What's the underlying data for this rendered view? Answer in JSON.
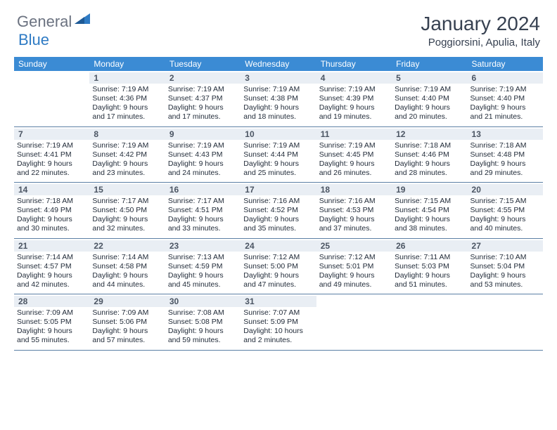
{
  "logo": {
    "general": "General",
    "blue": "Blue"
  },
  "title": "January 2024",
  "location": "Poggiorsini, Apulia, Italy",
  "colors": {
    "header_bar": "#3b8bd4",
    "daynum_bg": "#e9eef4",
    "row_border": "#5b7fa5",
    "logo_gray": "#6b7280",
    "logo_blue": "#2f7bc4"
  },
  "weekdays": [
    "Sunday",
    "Monday",
    "Tuesday",
    "Wednesday",
    "Thursday",
    "Friday",
    "Saturday"
  ],
  "weeks": [
    [
      {
        "num": "",
        "lines": []
      },
      {
        "num": "1",
        "lines": [
          "Sunrise: 7:19 AM",
          "Sunset: 4:36 PM",
          "Daylight: 9 hours",
          "and 17 minutes."
        ]
      },
      {
        "num": "2",
        "lines": [
          "Sunrise: 7:19 AM",
          "Sunset: 4:37 PM",
          "Daylight: 9 hours",
          "and 17 minutes."
        ]
      },
      {
        "num": "3",
        "lines": [
          "Sunrise: 7:19 AM",
          "Sunset: 4:38 PM",
          "Daylight: 9 hours",
          "and 18 minutes."
        ]
      },
      {
        "num": "4",
        "lines": [
          "Sunrise: 7:19 AM",
          "Sunset: 4:39 PM",
          "Daylight: 9 hours",
          "and 19 minutes."
        ]
      },
      {
        "num": "5",
        "lines": [
          "Sunrise: 7:19 AM",
          "Sunset: 4:40 PM",
          "Daylight: 9 hours",
          "and 20 minutes."
        ]
      },
      {
        "num": "6",
        "lines": [
          "Sunrise: 7:19 AM",
          "Sunset: 4:40 PM",
          "Daylight: 9 hours",
          "and 21 minutes."
        ]
      }
    ],
    [
      {
        "num": "7",
        "lines": [
          "Sunrise: 7:19 AM",
          "Sunset: 4:41 PM",
          "Daylight: 9 hours",
          "and 22 minutes."
        ]
      },
      {
        "num": "8",
        "lines": [
          "Sunrise: 7:19 AM",
          "Sunset: 4:42 PM",
          "Daylight: 9 hours",
          "and 23 minutes."
        ]
      },
      {
        "num": "9",
        "lines": [
          "Sunrise: 7:19 AM",
          "Sunset: 4:43 PM",
          "Daylight: 9 hours",
          "and 24 minutes."
        ]
      },
      {
        "num": "10",
        "lines": [
          "Sunrise: 7:19 AM",
          "Sunset: 4:44 PM",
          "Daylight: 9 hours",
          "and 25 minutes."
        ]
      },
      {
        "num": "11",
        "lines": [
          "Sunrise: 7:19 AM",
          "Sunset: 4:45 PM",
          "Daylight: 9 hours",
          "and 26 minutes."
        ]
      },
      {
        "num": "12",
        "lines": [
          "Sunrise: 7:18 AM",
          "Sunset: 4:46 PM",
          "Daylight: 9 hours",
          "and 28 minutes."
        ]
      },
      {
        "num": "13",
        "lines": [
          "Sunrise: 7:18 AM",
          "Sunset: 4:48 PM",
          "Daylight: 9 hours",
          "and 29 minutes."
        ]
      }
    ],
    [
      {
        "num": "14",
        "lines": [
          "Sunrise: 7:18 AM",
          "Sunset: 4:49 PM",
          "Daylight: 9 hours",
          "and 30 minutes."
        ]
      },
      {
        "num": "15",
        "lines": [
          "Sunrise: 7:17 AM",
          "Sunset: 4:50 PM",
          "Daylight: 9 hours",
          "and 32 minutes."
        ]
      },
      {
        "num": "16",
        "lines": [
          "Sunrise: 7:17 AM",
          "Sunset: 4:51 PM",
          "Daylight: 9 hours",
          "and 33 minutes."
        ]
      },
      {
        "num": "17",
        "lines": [
          "Sunrise: 7:16 AM",
          "Sunset: 4:52 PM",
          "Daylight: 9 hours",
          "and 35 minutes."
        ]
      },
      {
        "num": "18",
        "lines": [
          "Sunrise: 7:16 AM",
          "Sunset: 4:53 PM",
          "Daylight: 9 hours",
          "and 37 minutes."
        ]
      },
      {
        "num": "19",
        "lines": [
          "Sunrise: 7:15 AM",
          "Sunset: 4:54 PM",
          "Daylight: 9 hours",
          "and 38 minutes."
        ]
      },
      {
        "num": "20",
        "lines": [
          "Sunrise: 7:15 AM",
          "Sunset: 4:55 PM",
          "Daylight: 9 hours",
          "and 40 minutes."
        ]
      }
    ],
    [
      {
        "num": "21",
        "lines": [
          "Sunrise: 7:14 AM",
          "Sunset: 4:57 PM",
          "Daylight: 9 hours",
          "and 42 minutes."
        ]
      },
      {
        "num": "22",
        "lines": [
          "Sunrise: 7:14 AM",
          "Sunset: 4:58 PM",
          "Daylight: 9 hours",
          "and 44 minutes."
        ]
      },
      {
        "num": "23",
        "lines": [
          "Sunrise: 7:13 AM",
          "Sunset: 4:59 PM",
          "Daylight: 9 hours",
          "and 45 minutes."
        ]
      },
      {
        "num": "24",
        "lines": [
          "Sunrise: 7:12 AM",
          "Sunset: 5:00 PM",
          "Daylight: 9 hours",
          "and 47 minutes."
        ]
      },
      {
        "num": "25",
        "lines": [
          "Sunrise: 7:12 AM",
          "Sunset: 5:01 PM",
          "Daylight: 9 hours",
          "and 49 minutes."
        ]
      },
      {
        "num": "26",
        "lines": [
          "Sunrise: 7:11 AM",
          "Sunset: 5:03 PM",
          "Daylight: 9 hours",
          "and 51 minutes."
        ]
      },
      {
        "num": "27",
        "lines": [
          "Sunrise: 7:10 AM",
          "Sunset: 5:04 PM",
          "Daylight: 9 hours",
          "and 53 minutes."
        ]
      }
    ],
    [
      {
        "num": "28",
        "lines": [
          "Sunrise: 7:09 AM",
          "Sunset: 5:05 PM",
          "Daylight: 9 hours",
          "and 55 minutes."
        ]
      },
      {
        "num": "29",
        "lines": [
          "Sunrise: 7:09 AM",
          "Sunset: 5:06 PM",
          "Daylight: 9 hours",
          "and 57 minutes."
        ]
      },
      {
        "num": "30",
        "lines": [
          "Sunrise: 7:08 AM",
          "Sunset: 5:08 PM",
          "Daylight: 9 hours",
          "and 59 minutes."
        ]
      },
      {
        "num": "31",
        "lines": [
          "Sunrise: 7:07 AM",
          "Sunset: 5:09 PM",
          "Daylight: 10 hours",
          "and 2 minutes."
        ]
      },
      {
        "num": "",
        "lines": []
      },
      {
        "num": "",
        "lines": []
      },
      {
        "num": "",
        "lines": []
      }
    ]
  ]
}
